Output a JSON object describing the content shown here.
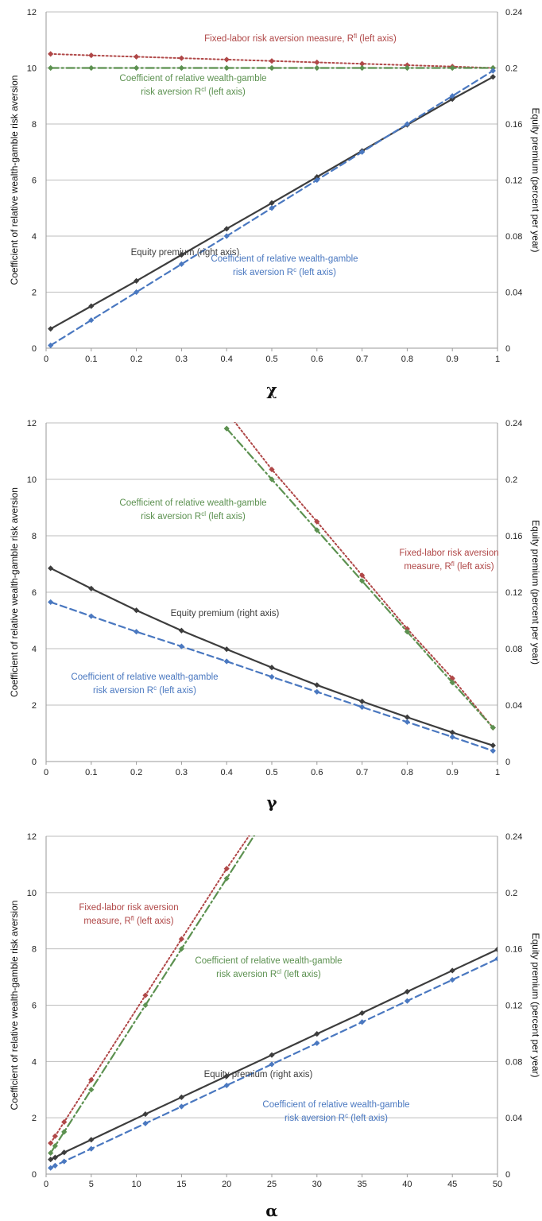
{
  "colors": {
    "equity": "#3d3d3d",
    "rc": "#4a78c0",
    "rcl": "#5c9150",
    "rfl": "#b04848"
  },
  "chart_data": [
    {
      "type": "line",
      "xlabel": "χ",
      "ylabel": "Coefficient of relative wealth-gamble risk aversion",
      "y2label": "Equity premium (percent per year)",
      "xlim": [
        0,
        1
      ],
      "ylim": [
        0,
        12
      ],
      "y2lim": [
        0,
        0.24
      ],
      "xticks": [
        "0",
        "0.1",
        "0.2",
        "0.3",
        "0.4",
        "0.5",
        "0.6",
        "0.7",
        "0.8",
        "0.9",
        "1"
      ],
      "yticks": [
        "0",
        "2",
        "4",
        "6",
        "8",
        "10",
        "12"
      ],
      "y2ticks": [
        "0",
        "0.04",
        "0.08",
        "0.12",
        "0.16",
        "0.2",
        "0.24"
      ],
      "grid": true,
      "series": [
        {
          "key": "rfl",
          "axis": "left",
          "x": [
            0.01,
            0.1,
            0.2,
            0.3,
            0.4,
            0.5,
            0.6,
            0.7,
            0.8,
            0.9,
            0.99
          ],
          "y": [
            10.5,
            10.45,
            10.4,
            10.35,
            10.3,
            10.25,
            10.2,
            10.15,
            10.1,
            10.05,
            10.0
          ]
        },
        {
          "key": "rcl",
          "axis": "left",
          "x": [
            0.01,
            0.1,
            0.2,
            0.3,
            0.4,
            0.5,
            0.6,
            0.7,
            0.8,
            0.9,
            0.99
          ],
          "y": [
            10,
            10,
            10,
            10,
            10,
            10,
            10,
            10,
            10,
            10,
            10
          ]
        },
        {
          "key": "equity",
          "axis": "right",
          "x": [
            0.01,
            0.1,
            0.2,
            0.3,
            0.4,
            0.5,
            0.6,
            0.7,
            0.8,
            0.9,
            0.99
          ],
          "y": [
            0.0138,
            0.03,
            0.048,
            0.0666,
            0.0852,
            0.1036,
            0.1222,
            0.1408,
            0.1594,
            0.1778,
            0.1936
          ]
        },
        {
          "key": "rc",
          "axis": "left",
          "x": [
            0.01,
            0.1,
            0.2,
            0.3,
            0.4,
            0.5,
            0.6,
            0.7,
            0.8,
            0.9,
            0.99
          ],
          "y": [
            0.1,
            1,
            2,
            3,
            4,
            5,
            6,
            7,
            8,
            9,
            9.9
          ]
        }
      ],
      "annotations": [
        {
          "key": "rfl",
          "lines": [
            {
              "text": "Fixed-labor risk aversion measure, R",
              "sup": "fl",
              "after": " (left axis)"
            }
          ]
        },
        {
          "key": "rcl",
          "lines": [
            {
              "text": "Coefficient of relative wealth-gamble",
              "sup": "",
              "after": ""
            },
            {
              "text": "risk aversion R",
              "sup": "cl",
              "after": " (left axis)"
            }
          ]
        },
        {
          "key": "equity",
          "lines": [
            {
              "text": "Equity premium (right axis)",
              "sup": "",
              "after": ""
            }
          ]
        },
        {
          "key": "rc",
          "lines": [
            {
              "text": "Coefficient of relative wealth-gamble",
              "sup": "",
              "after": ""
            },
            {
              "text": "risk aversion R",
              "sup": "c",
              "after": " (left axis)"
            }
          ]
        }
      ]
    },
    {
      "type": "line",
      "xlabel": "γ",
      "ylabel": "Coefficient of relative wealth-gamble risk aversion",
      "y2label": "Equity premium (percent per year)",
      "xlim": [
        0,
        1
      ],
      "ylim": [
        0,
        12
      ],
      "y2lim": [
        0,
        0.24
      ],
      "xticks": [
        "0",
        "0.1",
        "0.2",
        "0.3",
        "0.4",
        "0.5",
        "0.6",
        "0.7",
        "0.8",
        "0.9",
        "1"
      ],
      "yticks": [
        "0",
        "2",
        "4",
        "6",
        "8",
        "10",
        "12"
      ],
      "y2ticks": [
        "0",
        "0.04",
        "0.08",
        "0.12",
        "0.16",
        "0.2",
        "0.24"
      ],
      "grid": true,
      "series": [
        {
          "key": "rfl",
          "axis": "left",
          "x": [
            0.4,
            0.5,
            0.6,
            0.7,
            0.8,
            0.9,
            0.99
          ],
          "y": [
            12.4,
            10.35,
            8.5,
            6.6,
            4.7,
            2.95,
            1.2
          ]
        },
        {
          "key": "rcl",
          "axis": "left",
          "x": [
            0.4,
            0.5,
            0.6,
            0.7,
            0.8,
            0.9,
            0.99
          ],
          "y": [
            11.8,
            10.0,
            8.2,
            6.4,
            4.6,
            2.8,
            1.2
          ]
        },
        {
          "key": "equity",
          "axis": "right",
          "x": [
            0.01,
            0.1,
            0.2,
            0.3,
            0.4,
            0.5,
            0.6,
            0.7,
            0.8,
            0.9,
            0.99
          ],
          "y": [
            0.137,
            0.1226,
            0.1072,
            0.0928,
            0.0796,
            0.0666,
            0.0542,
            0.0426,
            0.0314,
            0.0206,
            0.0114
          ]
        },
        {
          "key": "rc",
          "axis": "left",
          "x": [
            0.01,
            0.1,
            0.2,
            0.3,
            0.4,
            0.5,
            0.6,
            0.7,
            0.8,
            0.9,
            0.99
          ],
          "y": [
            5.65,
            5.15,
            4.6,
            4.08,
            3.55,
            3.0,
            2.47,
            1.93,
            1.4,
            0.87,
            0.38
          ]
        }
      ],
      "annotations": [
        {
          "key": "rcl",
          "lines": [
            {
              "text": "Coefficient of relative wealth-gamble",
              "sup": "",
              "after": ""
            },
            {
              "text": "risk aversion R",
              "sup": "cl",
              "after": " (left axis)"
            }
          ]
        },
        {
          "key": "rfl",
          "lines": [
            {
              "text": "Fixed-labor risk aversion",
              "sup": "",
              "after": ""
            },
            {
              "text": "measure, R",
              "sup": "fl",
              "after": " (left axis)"
            }
          ]
        },
        {
          "key": "equity",
          "lines": [
            {
              "text": "Equity premium (right axis)",
              "sup": "",
              "after": ""
            }
          ]
        },
        {
          "key": "rc",
          "lines": [
            {
              "text": "Coefficient of relative wealth-gamble",
              "sup": "",
              "after": ""
            },
            {
              "text": "risk aversion R",
              "sup": "c",
              "after": " (left axis)"
            }
          ]
        }
      ]
    },
    {
      "type": "line",
      "xlabel": "α",
      "ylabel": "Coefficient of relative wealth-gamble risk aversion",
      "y2label": "Equity premium (percent per year)",
      "xlim": [
        0,
        50
      ],
      "ylim": [
        0,
        12
      ],
      "y2lim": [
        0,
        0.24
      ],
      "xticks": [
        "0",
        "5",
        "10",
        "15",
        "20",
        "25",
        "30",
        "35",
        "40",
        "45",
        "50"
      ],
      "yticks": [
        "0",
        "2",
        "4",
        "6",
        "8",
        "10",
        "12"
      ],
      "y2ticks": [
        "0",
        "0.04",
        "0.08",
        "0.12",
        "0.16",
        "0.2",
        "0.24"
      ],
      "grid": true,
      "series": [
        {
          "key": "rfl",
          "axis": "left",
          "x": [
            0.5,
            1,
            2,
            5,
            11,
            15,
            20,
            23.3
          ],
          "y": [
            1.1,
            1.35,
            1.85,
            3.35,
            6.35,
            8.35,
            10.85,
            12.4
          ]
        },
        {
          "key": "rcl",
          "axis": "left",
          "x": [
            0.5,
            1,
            2,
            5,
            11,
            15,
            20,
            23.8
          ],
          "y": [
            0.75,
            1.0,
            1.5,
            3.0,
            6.0,
            8.0,
            10.5,
            12.4
          ]
        },
        {
          "key": "equity",
          "axis": "right",
          "x": [
            0.5,
            1,
            2,
            5,
            11,
            15,
            20,
            25,
            30,
            35,
            40,
            45,
            50
          ],
          "y": [
            0.0104,
            0.0118,
            0.0154,
            0.0244,
            0.0426,
            0.0546,
            0.0696,
            0.0846,
            0.0996,
            0.1144,
            0.1296,
            0.1446,
            0.1596
          ]
        },
        {
          "key": "rc",
          "axis": "left",
          "x": [
            0.5,
            1,
            2,
            5,
            11,
            15,
            20,
            25,
            30,
            35,
            40,
            45,
            50
          ],
          "y": [
            0.22,
            0.3,
            0.45,
            0.9,
            1.8,
            2.4,
            3.15,
            3.9,
            4.65,
            5.4,
            6.15,
            6.9,
            7.65
          ]
        }
      ],
      "annotations": [
        {
          "key": "rfl",
          "lines": [
            {
              "text": "Fixed-labor risk aversion",
              "sup": "",
              "after": ""
            },
            {
              "text": "measure, R",
              "sup": "fl",
              "after": " (left axis)"
            }
          ]
        },
        {
          "key": "rcl",
          "lines": [
            {
              "text": "Coefficient of relative wealth-gamble",
              "sup": "",
              "after": ""
            },
            {
              "text": "risk aversion R",
              "sup": "cl",
              "after": " (left axis)"
            }
          ]
        },
        {
          "key": "equity",
          "lines": [
            {
              "text": "Equity premium (right axis)",
              "sup": "",
              "after": ""
            }
          ]
        },
        {
          "key": "rc",
          "lines": [
            {
              "text": "Coefficient of relative wealth-gamble",
              "sup": "",
              "after": ""
            },
            {
              "text": "risk aversion R",
              "sup": "c",
              "after": " (left axis)"
            }
          ]
        }
      ]
    }
  ]
}
